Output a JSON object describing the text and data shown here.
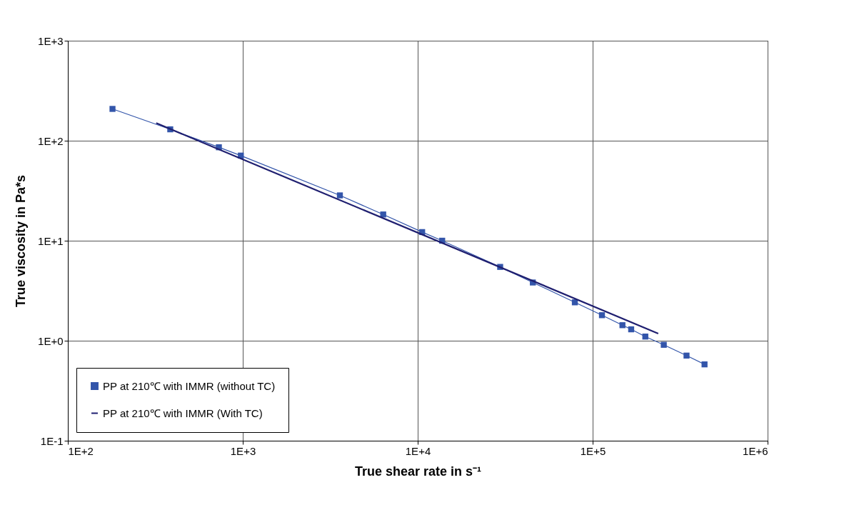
{
  "chart_data": {
    "type": "line",
    "xlabel": "True shear rate in s⁻¹",
    "ylabel": "True viscosity in Pa*s",
    "log": "xy",
    "grid": true,
    "legend": "bottom left",
    "xlim": [
      100,
      1000000
    ],
    "ylim": [
      0.1,
      1000
    ],
    "xticks": [
      {
        "value": 100,
        "label": "1E+2"
      },
      {
        "value": 1000,
        "label": "1E+3"
      },
      {
        "value": 10000,
        "label": "1E+4"
      },
      {
        "value": 100000,
        "label": "1E+5"
      },
      {
        "value": 1000000,
        "label": "1E+6"
      }
    ],
    "yticks": [
      {
        "value": 0.1,
        "label": "1E-1"
      },
      {
        "value": 1,
        "label": "1E+0"
      },
      {
        "value": 10,
        "label": "1E+1"
      },
      {
        "value": 100,
        "label": "1E+2"
      },
      {
        "value": 1000,
        "label": "1E+3"
      }
    ],
    "series": [
      {
        "name": "PP at 210℃ with IMMR (without TC)",
        "color": "#3355aa",
        "marker": "square",
        "line_style": "solid",
        "x": [
          180,
          385,
          730,
          975,
          3590,
          6350,
          10600,
          13800,
          29600,
          45500,
          79100,
          113000,
          148000,
          166000,
          200000,
          255000,
          344000,
          436000
        ],
        "values": [
          208,
          130,
          86,
          71,
          28.4,
          18.3,
          12.2,
          10.0,
          5.47,
          3.82,
          2.42,
          1.8,
          1.43,
          1.3,
          1.1,
          0.91,
          0.71,
          0.58
        ]
      },
      {
        "name": "PP at 210℃ with IMMR (With TC)",
        "color": "#1f1f70",
        "marker": "none",
        "line_style": "solid",
        "x": [
          320,
          237000
        ],
        "values": [
          150,
          1.18
        ]
      }
    ]
  }
}
